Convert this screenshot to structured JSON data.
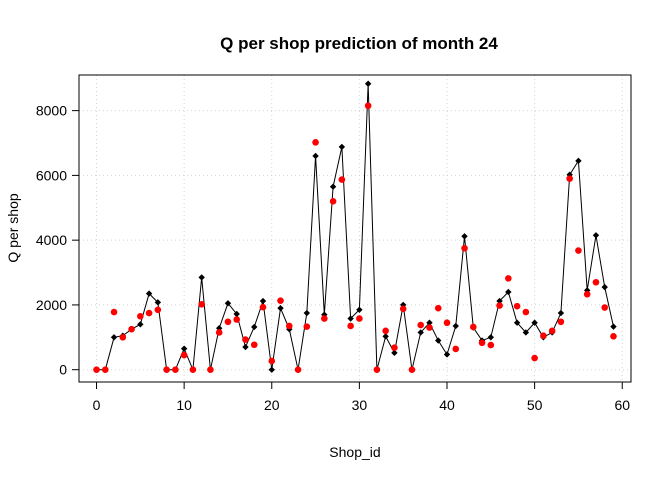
{
  "chart_data": {
    "type": "scatter",
    "title": "Q per shop prediction of month 24",
    "xlabel": "Shop_id",
    "ylabel": "Q per shop",
    "xlim": [
      -2,
      61
    ],
    "ylim": [
      -380,
      9100
    ],
    "x_ticks": [
      0,
      10,
      20,
      30,
      40,
      50,
      60
    ],
    "y_ticks": [
      0,
      2000,
      4000,
      6000,
      8000
    ],
    "x_tick_labels": [
      "0",
      "10",
      "20",
      "30",
      "40",
      "50",
      "60"
    ],
    "y_tick_labels": [
      "0",
      "2000",
      "4000",
      "6000",
      "8000"
    ],
    "grid": true,
    "legend": "none",
    "colors": {
      "actual": "#000000",
      "predicted": "#ff0000",
      "grid": "#d3d3d3"
    },
    "x": [
      0,
      1,
      2,
      3,
      4,
      5,
      6,
      7,
      8,
      9,
      10,
      11,
      12,
      13,
      14,
      15,
      16,
      17,
      18,
      19,
      20,
      21,
      22,
      23,
      24,
      25,
      26,
      27,
      28,
      29,
      30,
      31,
      32,
      33,
      34,
      35,
      36,
      37,
      38,
      39,
      40,
      41,
      42,
      43,
      44,
      45,
      46,
      47,
      48,
      49,
      50,
      51,
      52,
      53,
      54,
      55,
      56,
      57,
      58,
      59
    ],
    "series": [
      {
        "style": "line-with-points",
        "color": "#000000",
        "values": [
          0,
          0,
          1000,
          1050,
          1250,
          1400,
          2350,
          2080,
          0,
          0,
          650,
          0,
          2850,
          0,
          1280,
          2050,
          1720,
          700,
          1320,
          2120,
          0,
          1900,
          1250,
          0,
          1750,
          6600,
          1700,
          5650,
          6880,
          1580,
          1850,
          8830,
          0,
          1030,
          520,
          2000,
          0,
          1150,
          1450,
          900,
          470,
          1350,
          4120,
          1300,
          900,
          1000,
          2120,
          2400,
          1450,
          1150,
          1450,
          1000,
          1150,
          1750,
          6020,
          6450,
          2450,
          4150,
          2550,
          1330
        ]
      },
      {
        "style": "points",
        "color": "#ff0000",
        "values": [
          0,
          0,
          1780,
          1000,
          1250,
          1650,
          1750,
          1850,
          0,
          0,
          450,
          0,
          2020,
          0,
          1150,
          1480,
          1550,
          930,
          770,
          1930,
          270,
          2130,
          1350,
          0,
          1330,
          7020,
          1580,
          5200,
          5870,
          1350,
          1580,
          8150,
          0,
          1200,
          680,
          1880,
          0,
          1380,
          1300,
          1900,
          1450,
          640,
          3750,
          1320,
          830,
          760,
          1980,
          2820,
          1960,
          1780,
          360,
          1050,
          1200,
          1480,
          5900,
          3680,
          2330,
          2700,
          1920,
          1030
        ]
      }
    ]
  }
}
